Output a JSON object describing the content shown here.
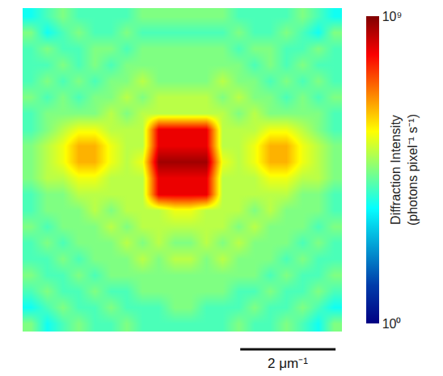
{
  "chart_data": {
    "type": "heatmap",
    "log": true,
    "tick_labels": false,
    "xlim": [
      -3.35,
      3.35
    ],
    "ylim": [
      -3.35,
      3.35
    ],
    "colorbar_title": [
      "Diffraction Intensity",
      "(photons pixel⁻¹ s⁻¹)"
    ],
    "colorbar_range": [
      1,
      1000000000.0
    ],
    "colorbar_ticks": [
      {
        "value": 1000000000.0,
        "label": "10⁹"
      },
      {
        "value": 1,
        "label": "10⁰"
      }
    ],
    "scale_bar": {
      "length": 2,
      "label": "2 μm⁻¹"
    },
    "cells": [
      [
        3000.0,
        10000.0,
        30000.0,
        10000.0,
        10000.0,
        10000.0,
        10000.0,
        30000.0,
        30000.0,
        30000.0,
        30000.0,
        30000.0,
        30000.0,
        10000.0,
        10000.0,
        10000.0,
        10000.0,
        30000.0,
        10000.0,
        3000.0
      ],
      [
        30000.0,
        3000.0,
        10000.0,
        30000.0,
        10000.0,
        10000.0,
        30000.0,
        10000.0,
        10000.0,
        10000.0,
        10000.0,
        10000.0,
        10000.0,
        30000.0,
        10000.0,
        10000.0,
        30000.0,
        10000.0,
        3000.0,
        30000.0
      ],
      [
        10000.0,
        30000.0,
        10000.0,
        10000.0,
        30000.0,
        30000.0,
        10000.0,
        30000.0,
        30000.0,
        30000.0,
        30000.0,
        30000.0,
        30000.0,
        10000.0,
        30000.0,
        30000.0,
        10000.0,
        10000.0,
        30000.0,
        10000.0
      ],
      [
        10000.0,
        10000.0,
        30000.0,
        10000.0,
        30000.0,
        10000.0,
        30000.0,
        30000.0,
        30000.0,
        30000.0,
        30000.0,
        30000.0,
        30000.0,
        30000.0,
        10000.0,
        30000.0,
        10000.0,
        30000.0,
        10000.0,
        10000.0
      ],
      [
        10000.0,
        30000.0,
        10000.0,
        30000.0,
        10000.0,
        30000.0,
        30000.0,
        100000.0,
        30000.0,
        30000.0,
        30000.0,
        30000.0,
        100000.0,
        30000.0,
        30000.0,
        10000.0,
        30000.0,
        10000.0,
        30000.0,
        10000.0
      ],
      [
        30000.0,
        10000.0,
        30000.0,
        10000.0,
        30000.0,
        30000.0,
        100000.0,
        30000.0,
        100000.0,
        100000.0,
        100000.0,
        100000.0,
        30000.0,
        100000.0,
        30000.0,
        30000.0,
        10000.0,
        30000.0,
        10000.0,
        30000.0
      ],
      [
        10000.0,
        30000.0,
        30000.0,
        30000.0,
        30000.0,
        100000.0,
        30000.0,
        100000.0,
        100000.0,
        100000.0,
        100000.0,
        100000.0,
        100000.0,
        30000.0,
        100000.0,
        30000.0,
        30000.0,
        30000.0,
        30000.0,
        10000.0
      ],
      [
        10000.0,
        30000.0,
        100000.0,
        300000.0,
        300000.0,
        100000.0,
        100000.0,
        100000.0,
        100000000.0,
        100000000.0,
        100000000.0,
        100000000.0,
        100000.0,
        100000.0,
        100000.0,
        300000.0,
        300000.0,
        100000.0,
        30000.0,
        10000.0
      ],
      [
        30000.0,
        100000.0,
        300000.0,
        2000000.0,
        2000000.0,
        300000.0,
        100000.0,
        100000.0,
        100000000.0,
        100000000.0,
        100000000.0,
        100000000.0,
        100000.0,
        100000.0,
        300000.0,
        2000000.0,
        2000000.0,
        300000.0,
        100000.0,
        30000.0
      ],
      [
        30000.0,
        100000.0,
        300000.0,
        2000000.0,
        2000000.0,
        300000.0,
        100000.0,
        300000.0,
        500000000.0,
        500000000.0,
        500000000.0,
        500000000.0,
        300000.0,
        100000.0,
        300000.0,
        2000000.0,
        2000000.0,
        300000.0,
        100000.0,
        30000.0
      ],
      [
        30000.0,
        100000.0,
        100000.0,
        300000.0,
        300000.0,
        100000.0,
        100000.0,
        100000.0,
        100000000.0,
        100000000.0,
        100000000.0,
        100000000.0,
        100000.0,
        100000.0,
        100000.0,
        300000.0,
        300000.0,
        100000.0,
        100000.0,
        30000.0
      ],
      [
        10000.0,
        30000.0,
        30000.0,
        100000.0,
        100000.0,
        100000.0,
        100000.0,
        100000.0,
        100000000.0,
        100000000.0,
        100000000.0,
        100000000.0,
        100000.0,
        100000.0,
        100000.0,
        100000.0,
        100000.0,
        30000.0,
        30000.0,
        10000.0
      ],
      [
        10000.0,
        30000.0,
        30000.0,
        30000.0,
        100000.0,
        30000.0,
        100000.0,
        100000.0,
        100000.0,
        300000.0,
        300000.0,
        100000.0,
        100000.0,
        100000.0,
        30000.0,
        100000.0,
        30000.0,
        30000.0,
        30000.0,
        10000.0
      ],
      [
        30000.0,
        10000.0,
        30000.0,
        30000.0,
        30000.0,
        100000.0,
        30000.0,
        100000.0,
        100000.0,
        100000.0,
        100000.0,
        100000.0,
        100000.0,
        30000.0,
        100000.0,
        30000.0,
        30000.0,
        30000.0,
        10000.0,
        30000.0
      ],
      [
        10000.0,
        30000.0,
        10000.0,
        30000.0,
        30000.0,
        30000.0,
        100000.0,
        30000.0,
        100000.0,
        30000.0,
        30000.0,
        100000.0,
        30000.0,
        100000.0,
        30000.0,
        30000.0,
        30000.0,
        10000.0,
        30000.0,
        10000.0
      ],
      [
        10000.0,
        10000.0,
        30000.0,
        10000.0,
        30000.0,
        30000.0,
        30000.0,
        100000.0,
        30000.0,
        100000.0,
        100000.0,
        30000.0,
        100000.0,
        30000.0,
        30000.0,
        30000.0,
        10000.0,
        30000.0,
        10000.0,
        10000.0
      ],
      [
        30000.0,
        10000.0,
        10000.0,
        30000.0,
        10000.0,
        30000.0,
        30000.0,
        30000.0,
        30000.0,
        30000.0,
        30000.0,
        30000.0,
        30000.0,
        30000.0,
        30000.0,
        10000.0,
        30000.0,
        10000.0,
        10000.0,
        30000.0
      ],
      [
        10000.0,
        30000.0,
        10000.0,
        10000.0,
        30000.0,
        10000.0,
        10000.0,
        30000.0,
        30000.0,
        30000.0,
        30000.0,
        30000.0,
        30000.0,
        10000.0,
        10000.0,
        30000.0,
        10000.0,
        10000.0,
        30000.0,
        10000.0
      ],
      [
        3000.0,
        10000.0,
        30000.0,
        10000.0,
        10000.0,
        30000.0,
        10000.0,
        10000.0,
        10000.0,
        30000.0,
        30000.0,
        10000.0,
        10000.0,
        10000.0,
        30000.0,
        10000.0,
        10000.0,
        30000.0,
        10000.0,
        3000.0
      ],
      [
        30000.0,
        3000.0,
        10000.0,
        30000.0,
        10000.0,
        10000.0,
        30000.0,
        10000.0,
        10000.0,
        10000.0,
        10000.0,
        10000.0,
        10000.0,
        30000.0,
        10000.0,
        10000.0,
        30000.0,
        10000.0,
        3000.0,
        30000.0
      ]
    ]
  }
}
